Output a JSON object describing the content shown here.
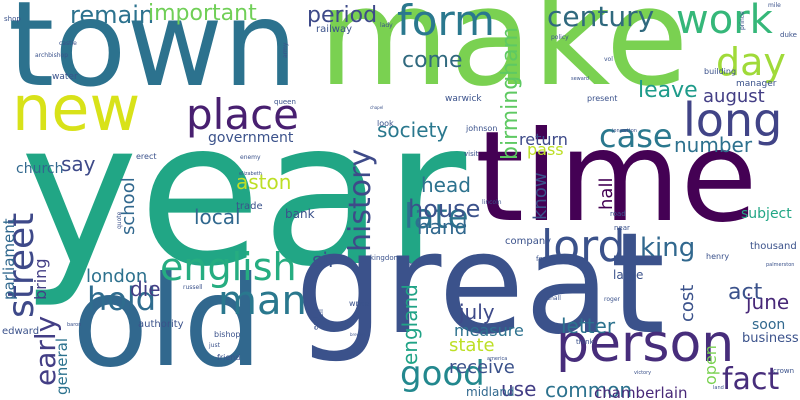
{
  "words": [
    {
      "text": "year",
      "weight": 1.0,
      "color": "#21a685"
    },
    {
      "text": "great",
      "weight": 0.9,
      "color": "#3b528b"
    },
    {
      "text": "time",
      "weight": 0.9,
      "color": "#440154"
    },
    {
      "text": "make",
      "weight": 0.9,
      "color": "#7ad151"
    },
    {
      "text": "town",
      "weight": 0.85,
      "color": "#2c728e"
    },
    {
      "text": "old",
      "weight": 0.8,
      "color": "#31688e"
    },
    {
      "text": "new",
      "weight": 0.55,
      "color": "#d8e219"
    },
    {
      "text": "person",
      "weight": 0.45,
      "color": "#472d7b"
    },
    {
      "text": "lord",
      "weight": 0.4,
      "color": "#3b528b"
    },
    {
      "text": "long",
      "weight": 0.4,
      "color": "#414487"
    },
    {
      "text": "place",
      "weight": 0.38,
      "color": "#481f70"
    },
    {
      "text": "work",
      "weight": 0.36,
      "color": "#35b779"
    },
    {
      "text": "form",
      "weight": 0.35,
      "color": "#2a788e"
    },
    {
      "text": "man",
      "weight": 0.35,
      "color": "#2a788e"
    },
    {
      "text": "day",
      "weight": 0.33,
      "color": "#a0da39"
    },
    {
      "text": "street",
      "weight": 0.33,
      "color": "#3e4989"
    },
    {
      "text": "english",
      "weight": 0.33,
      "color": "#26ad81"
    },
    {
      "text": "century",
      "weight": 0.3,
      "color": "#30697e"
    },
    {
      "text": "case",
      "weight": 0.3,
      "color": "#2a788e"
    },
    {
      "text": "late",
      "weight": 0.3,
      "color": "#2c728e"
    },
    {
      "text": "history",
      "weight": 0.3,
      "color": "#3e4a89"
    },
    {
      "text": "good",
      "weight": 0.3,
      "color": "#23888e"
    },
    {
      "text": "fact",
      "weight": 0.3,
      "color": "#472d7b"
    },
    {
      "text": "hold",
      "weight": 0.28,
      "color": "#2f6c8e"
    },
    {
      "text": "birmingham",
      "weight": 0.25,
      "color": "#5ec962"
    },
    {
      "text": "early",
      "weight": 0.25,
      "color": "#433e85"
    },
    {
      "text": "house",
      "weight": 0.24,
      "color": "#3b528b"
    },
    {
      "text": "remain",
      "weight": 0.24,
      "color": "#2c728e"
    },
    {
      "text": "important",
      "weight": 0.24,
      "color": "#70cf57"
    },
    {
      "text": "period",
      "weight": 0.22,
      "color": "#3e4a89"
    },
    {
      "text": "king",
      "weight": 0.22,
      "color": "#31688e"
    },
    {
      "text": "come",
      "weight": 0.2,
      "color": "#30697e"
    },
    {
      "text": "society",
      "weight": 0.2,
      "color": "#2a788e"
    },
    {
      "text": "leave",
      "weight": 0.2,
      "color": "#1e9b8a"
    },
    {
      "text": "august",
      "weight": 0.18,
      "color": "#433e85"
    },
    {
      "text": "head",
      "weight": 0.18,
      "color": "#2c728e"
    },
    {
      "text": "hand",
      "weight": 0.18,
      "color": "#31688e"
    },
    {
      "text": "local",
      "weight": 0.18,
      "color": "#31688e"
    },
    {
      "text": "aston",
      "weight": 0.18,
      "color": "#bddf26"
    },
    {
      "text": "number",
      "weight": 0.18,
      "color": "#2d718e"
    },
    {
      "text": "know",
      "weight": 0.18,
      "color": "#3b528b"
    },
    {
      "text": "hall",
      "weight": 0.18,
      "color": "#440154"
    },
    {
      "text": "england",
      "weight": 0.18,
      "color": "#20a386"
    },
    {
      "text": "act",
      "weight": 0.18,
      "color": "#3b528b"
    },
    {
      "text": "june",
      "weight": 0.18,
      "color": "#482878"
    },
    {
      "text": "say",
      "weight": 0.15,
      "color": "#3e4a89"
    },
    {
      "text": "school",
      "weight": 0.15,
      "color": "#31688e"
    },
    {
      "text": "die",
      "weight": 0.15,
      "color": "#433e85"
    },
    {
      "text": "sir",
      "weight": 0.15,
      "color": "#3b528b"
    },
    {
      "text": "london",
      "weight": 0.15,
      "color": "#2d718e"
    },
    {
      "text": "july",
      "weight": 0.15,
      "color": "#3e4a89"
    },
    {
      "text": "letter",
      "weight": 0.15,
      "color": "#2c728e"
    },
    {
      "text": "state",
      "weight": 0.15,
      "color": "#bddf26"
    },
    {
      "text": "receive",
      "weight": 0.15,
      "color": "#3b528b"
    },
    {
      "text": "use",
      "weight": 0.15,
      "color": "#433e85"
    },
    {
      "text": "common",
      "weight": 0.15,
      "color": "#2c728e"
    },
    {
      "text": "measure",
      "weight": 0.14,
      "color": "#2d718e"
    },
    {
      "text": "cost",
      "weight": 0.14,
      "color": "#3b528b"
    },
    {
      "text": "open",
      "weight": 0.14,
      "color": "#7ad151"
    },
    {
      "text": "chamberlain",
      "weight": 0.13,
      "color": "#482878"
    },
    {
      "text": "parliament",
      "weight": 0.13,
      "color": "#31688e"
    },
    {
      "text": "return",
      "weight": 0.13,
      "color": "#3e4a89"
    },
    {
      "text": "pass",
      "weight": 0.13,
      "color": "#bddf26"
    },
    {
      "text": "bring",
      "weight": 0.13,
      "color": "#433e85"
    },
    {
      "text": "general",
      "weight": 0.13,
      "color": "#2c728e"
    },
    {
      "text": "government",
      "weight": 0.12,
      "color": "#3b528b"
    },
    {
      "text": "church",
      "weight": 0.12,
      "color": "#31688e"
    },
    {
      "text": "subject",
      "weight": 0.12,
      "color": "#21a685"
    },
    {
      "text": "soon",
      "weight": 0.12,
      "color": "#31688e"
    },
    {
      "text": "business",
      "weight": 0.12,
      "color": "#3b528b"
    },
    {
      "text": "midland",
      "weight": 0.1,
      "color": "#31688e"
    },
    {
      "text": "bank",
      "weight": 0.1,
      "color": "#3b528b"
    },
    {
      "text": "trade",
      "weight": 0.09,
      "color": "#3b528b"
    },
    {
      "text": "company",
      "weight": 0.09,
      "color": "#3b528b"
    },
    {
      "text": "thousand",
      "weight": 0.09,
      "color": "#3b528b"
    },
    {
      "text": "large",
      "weight": 0.09,
      "color": "#3b528b"
    },
    {
      "text": "edward",
      "weight": 0.08,
      "color": "#3b528b"
    },
    {
      "text": "authority",
      "weight": 0.08,
      "color": "#3b528b"
    },
    {
      "text": "railway",
      "weight": 0.08,
      "color": "#3b528b"
    },
    {
      "text": "water",
      "weight": 0.07,
      "color": "#3b528b"
    },
    {
      "text": "warwick",
      "weight": 0.07,
      "color": "#3b528b"
    },
    {
      "text": "manager",
      "weight": 0.07,
      "color": "#3b528b"
    },
    {
      "text": "building",
      "weight": 0.07,
      "color": "#3b528b"
    },
    {
      "text": "present",
      "weight": 0.07,
      "color": "#3b528b"
    },
    {
      "text": "henry",
      "weight": 0.06,
      "color": "#3b528b"
    },
    {
      "text": "kingdom",
      "weight": 0.06,
      "color": "#3b528b"
    },
    {
      "text": "erect",
      "weight": 0.06,
      "color": "#3b528b"
    },
    {
      "text": "look",
      "weight": 0.06,
      "color": "#3b528b"
    },
    {
      "text": "johnson",
      "weight": 0.06,
      "color": "#3b528b"
    },
    {
      "text": "queen",
      "weight": 0.06,
      "color": "#3b528b"
    },
    {
      "text": "quote",
      "weight": 0.05,
      "color": "#3b528b"
    },
    {
      "text": "bishop",
      "weight": 0.05,
      "color": "#3b528b"
    },
    {
      "text": "friend",
      "weight": 0.05,
      "color": "#3b528b"
    },
    {
      "text": "write",
      "weight": 0.05,
      "color": "#3b528b"
    },
    {
      "text": "think",
      "weight": 0.05,
      "color": "#3b528b"
    },
    {
      "text": "crown",
      "weight": 0.05,
      "color": "#3b528b"
    },
    {
      "text": "shop",
      "weight": 0.05,
      "color": "#3b528b"
    },
    {
      "text": "castle",
      "weight": 0.04,
      "color": "#3b528b"
    },
    {
      "text": "archbishop",
      "weight": 0.04,
      "color": "#3b528b"
    },
    {
      "text": "army",
      "weight": 0.04,
      "color": "#3b528b"
    },
    {
      "text": "enemy",
      "weight": 0.04,
      "color": "#3b528b"
    },
    {
      "text": "visit",
      "weight": 0.05,
      "color": "#3b528b"
    },
    {
      "text": "hill",
      "weight": 0.05,
      "color": "#3b528b"
    },
    {
      "text": "near",
      "weight": 0.05,
      "color": "#3b528b"
    },
    {
      "text": "road",
      "weight": 0.05,
      "color": "#3b528b"
    },
    {
      "text": "foot",
      "weight": 0.05,
      "color": "#3b528b"
    },
    {
      "text": "tell",
      "weight": 0.05,
      "color": "#3b528b"
    },
    {
      "text": "earl",
      "weight": 0.05,
      "color": "#3b528b"
    },
    {
      "text": "policy",
      "weight": 0.04,
      "color": "#3b528b"
    },
    {
      "text": "prince",
      "weight": 0.04,
      "color": "#3b528b"
    },
    {
      "text": "duke",
      "weight": 0.04,
      "color": "#3b528b"
    },
    {
      "text": "mile",
      "weight": 0.04,
      "color": "#3b528b"
    },
    {
      "text": "vol",
      "weight": 0.04,
      "color": "#3b528b"
    },
    {
      "text": "lady",
      "weight": 0.04,
      "color": "#3b528b"
    },
    {
      "text": "just",
      "weight": 0.04,
      "color": "#3b528b"
    },
    {
      "text": "russell",
      "weight": 0.04,
      "color": "#3b528b"
    },
    {
      "text": "lincoln",
      "weight": 0.04,
      "color": "#3b528b"
    },
    {
      "text": "america",
      "weight": 0.04,
      "color": "#3b528b"
    },
    {
      "text": "shall",
      "weight": 0.04,
      "color": "#3b528b"
    },
    {
      "text": "roger",
      "weight": 0.04,
      "color": "#3b528b"
    },
    {
      "text": "palmerston",
      "weight": 0.04,
      "color": "#3b528b"
    },
    {
      "text": "land",
      "weight": 0.04,
      "color": "#3b528b"
    },
    {
      "text": "victory",
      "weight": 0.03,
      "color": "#3b528b"
    },
    {
      "text": "jonson",
      "weight": 0.03,
      "color": "#3b528b"
    },
    {
      "text": "baron",
      "weight": 0.03,
      "color": "#3b528b"
    },
    {
      "text": "cotton",
      "weight": 0.03,
      "color": "#3b528b"
    },
    {
      "text": "elizabeth",
      "weight": 0.03,
      "color": "#3b528b"
    },
    {
      "text": "seward",
      "weight": 0.03,
      "color": "#3b528b"
    },
    {
      "text": "chapel",
      "weight": 0.03,
      "color": "#3b528b"
    },
    {
      "text": "brewery",
      "weight": 0.03,
      "color": "#3b528b"
    }
  ]
}
